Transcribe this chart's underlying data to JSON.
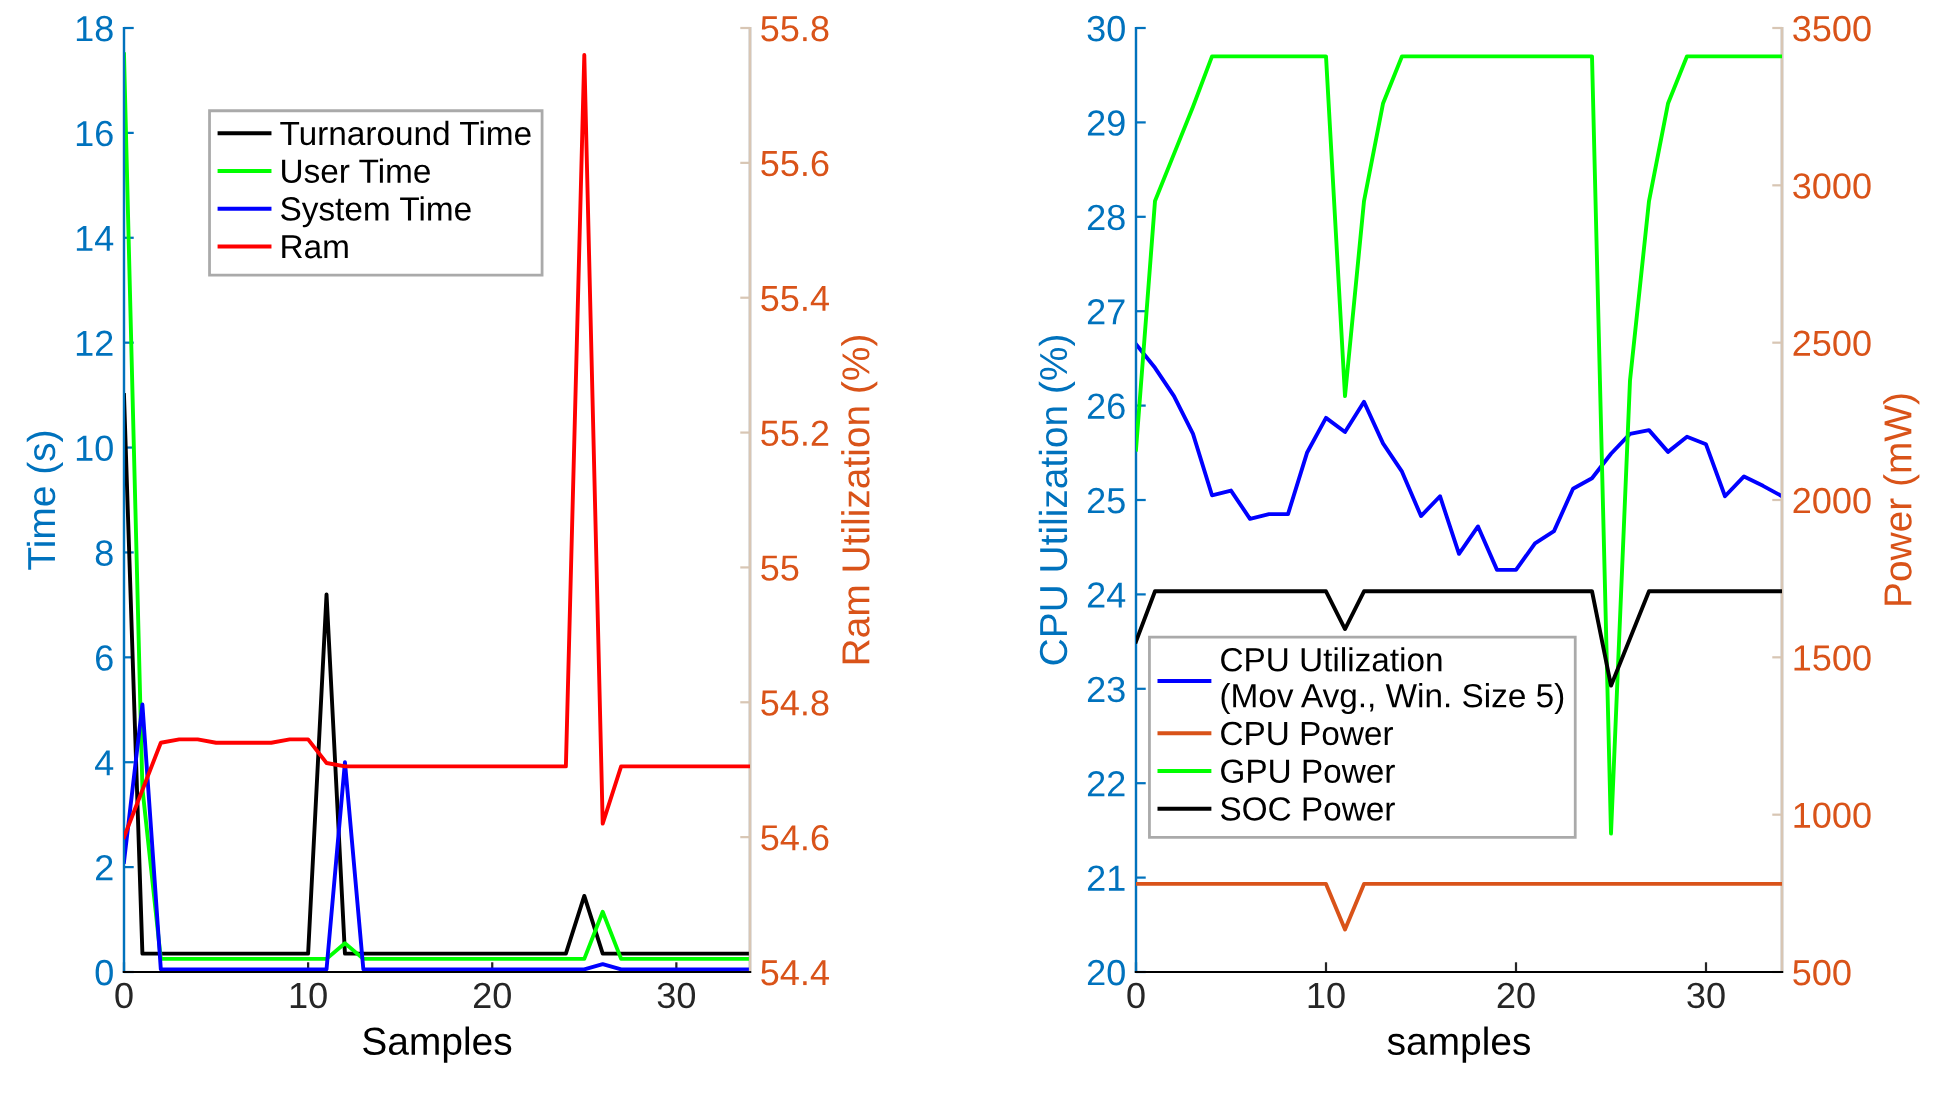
{
  "chart_data": [
    {
      "type": "line",
      "xlabel": "Samples",
      "ylabel": "Time (s)",
      "y2label": "Ram Utilization (%)",
      "xlim": [
        0,
        34
      ],
      "xticks": [
        0,
        10,
        20,
        30
      ],
      "ylim": [
        0,
        18
      ],
      "yticks": [
        0,
        2,
        4,
        6,
        8,
        10,
        12,
        14,
        16,
        18
      ],
      "y2lim": [
        54.4,
        55.8
      ],
      "y2ticks": [
        54.4,
        54.6,
        54.8,
        55,
        55.2,
        55.4,
        55.6,
        55.8
      ],
      "legend": "top left",
      "grid": false,
      "x": [
        0,
        1,
        2,
        3,
        4,
        5,
        6,
        7,
        8,
        9,
        10,
        11,
        12,
        13,
        14,
        15,
        16,
        17,
        18,
        19,
        20,
        21,
        22,
        23,
        24,
        25,
        26,
        27,
        28,
        29,
        30,
        31,
        32,
        33,
        34
      ],
      "series": [
        {
          "name": "Turnaround Time",
          "color": "#000000",
          "axis": "y",
          "values": [
            11,
            0.35,
            0.35,
            0.35,
            0.35,
            0.35,
            0.35,
            0.35,
            0.35,
            0.35,
            0.35,
            7.2,
            0.35,
            0.35,
            0.35,
            0.35,
            0.35,
            0.35,
            0.35,
            0.35,
            0.35,
            0.35,
            0.35,
            0.35,
            0.35,
            1.45,
            0.35,
            0.35,
            0.35,
            0.35,
            0.35,
            0.35,
            0.35,
            0.35,
            0.35
          ]
        },
        {
          "name": "User Time",
          "color": "#00ff00",
          "axis": "y",
          "values": [
            17.5,
            3.5,
            0.25,
            0.25,
            0.25,
            0.25,
            0.25,
            0.25,
            0.25,
            0.25,
            0.25,
            0.25,
            0.55,
            0.25,
            0.25,
            0.25,
            0.25,
            0.25,
            0.25,
            0.25,
            0.25,
            0.25,
            0.25,
            0.25,
            0.25,
            0.25,
            1.15,
            0.25,
            0.25,
            0.25,
            0.25,
            0.25,
            0.25,
            0.25,
            0.25
          ]
        },
        {
          "name": "System Time",
          "color": "#0000ff",
          "axis": "y",
          "values": [
            2.1,
            5.1,
            0.05,
            0.05,
            0.05,
            0.05,
            0.05,
            0.05,
            0.05,
            0.05,
            0.05,
            0.05,
            4.0,
            0.05,
            0.05,
            0.05,
            0.05,
            0.05,
            0.05,
            0.05,
            0.05,
            0.05,
            0.05,
            0.05,
            0.05,
            0.05,
            0.15,
            0.05,
            0.05,
            0.05,
            0.05,
            0.05,
            0.05,
            0.05,
            0.05
          ]
        },
        {
          "name": "Ram",
          "color": "#ff0000",
          "axis": "y2",
          "values": [
            54.6,
            54.67,
            54.74,
            54.745,
            54.745,
            54.74,
            54.74,
            54.74,
            54.74,
            54.745,
            54.745,
            54.71,
            54.705,
            54.705,
            54.705,
            54.705,
            54.705,
            54.705,
            54.705,
            54.705,
            54.705,
            54.705,
            54.705,
            54.705,
            54.705,
            55.76,
            54.62,
            54.705,
            54.705,
            54.705,
            54.705,
            54.705,
            54.705,
            54.705,
            54.705
          ]
        }
      ]
    },
    {
      "type": "line",
      "xlabel": "samples",
      "ylabel": "CPU Utilization (%)",
      "y2label": "Power (mW)",
      "xlim": [
        0,
        34
      ],
      "xticks": [
        0,
        10,
        20,
        30
      ],
      "ylim": [
        20,
        30
      ],
      "yticks": [
        20,
        21,
        22,
        23,
        24,
        25,
        26,
        27,
        28,
        29,
        30
      ],
      "y2lim": [
        500,
        3500
      ],
      "y2ticks": [
        500,
        1000,
        1500,
        2000,
        2500,
        3000,
        3500
      ],
      "legend": "bottom left",
      "grid": false,
      "x": [
        0,
        1,
        2,
        3,
        4,
        5,
        6,
        7,
        8,
        9,
        10,
        11,
        12,
        13,
        14,
        15,
        16,
        17,
        18,
        19,
        20,
        21,
        22,
        23,
        24,
        25,
        26,
        27,
        28,
        29,
        30,
        31,
        32,
        33,
        34
      ],
      "series": [
        {
          "name": "CPU Utilization\n(Mov Avg., Win. Size 5)",
          "color": "#0000ff",
          "axis": "y",
          "values": [
            26.65,
            26.4,
            26.1,
            25.7,
            25.05,
            25.1,
            24.8,
            24.85,
            24.85,
            25.5,
            25.87,
            25.72,
            26.04,
            25.6,
            25.3,
            24.83,
            25.04,
            24.43,
            24.72,
            24.26,
            24.26,
            24.54,
            24.67,
            25.12,
            25.23,
            25.49,
            25.7,
            25.74,
            25.51,
            25.67,
            25.59,
            25.04,
            25.25,
            25.15,
            25.04
          ]
        },
        {
          "name": "CPU Power",
          "color": "#d95319",
          "axis": "y2",
          "values": [
            780,
            780,
            780,
            780,
            780,
            780,
            780,
            780,
            780,
            780,
            780,
            635,
            780,
            780,
            780,
            780,
            780,
            780,
            780,
            780,
            780,
            780,
            780,
            780,
            780,
            780,
            780,
            780,
            780,
            780,
            780,
            780,
            780,
            780,
            780
          ]
        },
        {
          "name": "GPU Power",
          "color": "#00ff00",
          "axis": "y2",
          "values": [
            2160,
            2950,
            3100,
            3250,
            3410,
            3410,
            3410,
            3410,
            3410,
            3410,
            3410,
            2330,
            2950,
            3260,
            3410,
            3410,
            3410,
            3410,
            3410,
            3410,
            3410,
            3410,
            3410,
            3410,
            3410,
            940,
            2380,
            2950,
            3260,
            3410,
            3410,
            3410,
            3410,
            3410,
            3410
          ]
        },
        {
          "name": "SOC Power",
          "color": "#000000",
          "axis": "y2",
          "values": [
            1550,
            1710,
            1710,
            1710,
            1710,
            1710,
            1710,
            1710,
            1710,
            1710,
            1710,
            1590,
            1710,
            1710,
            1710,
            1710,
            1710,
            1710,
            1710,
            1710,
            1710,
            1710,
            1710,
            1710,
            1710,
            1410,
            1560,
            1710,
            1710,
            1710,
            1710,
            1710,
            1710,
            1710,
            1710
          ]
        }
      ]
    }
  ]
}
